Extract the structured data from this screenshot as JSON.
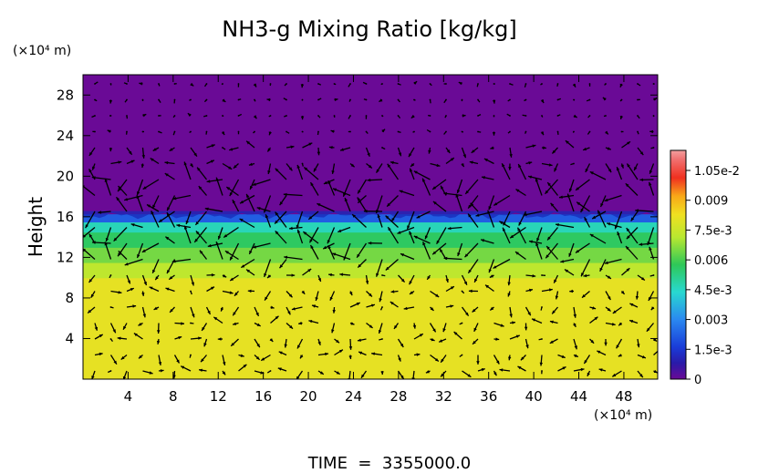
{
  "chart_data": {
    "type": "heatmap",
    "title": "NH3-g Mixing Ratio [kg/kg]",
    "ylabel": "Height",
    "y_unit_label": "(×10⁴ m)",
    "x_unit_label": "(×10⁴ m)",
    "xlim": [
      0,
      51
    ],
    "ylim": [
      0,
      30
    ],
    "x_ticks": [
      "4",
      "8",
      "12",
      "16",
      "20",
      "24",
      "28",
      "32",
      "36",
      "40",
      "44",
      "48"
    ],
    "y_ticks": [
      "4",
      "8",
      "12",
      "16",
      "20",
      "24",
      "28"
    ],
    "colorbar_labels": [
      "1.05e-2",
      "0.009",
      "7.5e-3",
      "0.006",
      "4.5e-3",
      "0.003",
      "1.5e-3",
      "0"
    ],
    "colorbar_range": [
      0,
      0.0114
    ],
    "layers": [
      {
        "y_from": 0,
        "y_to": 10,
        "value": 0.008
      },
      {
        "y_from": 10,
        "y_to": 11.5,
        "value": 0.0072
      },
      {
        "y_from": 11.5,
        "y_to": 13,
        "value": 0.0064
      },
      {
        "y_from": 13,
        "y_to": 14.5,
        "value": 0.0056
      },
      {
        "y_from": 14.5,
        "y_to": 15.5,
        "value": 0.0046
      },
      {
        "y_from": 15.5,
        "y_to": 16.3,
        "value": 0.0022
      },
      {
        "y_from": 16.3,
        "y_to": 30,
        "value": 0.0
      }
    ],
    "vector_field": "wind arrows over domain",
    "footer_text": "TIME  =  3355000.0"
  }
}
